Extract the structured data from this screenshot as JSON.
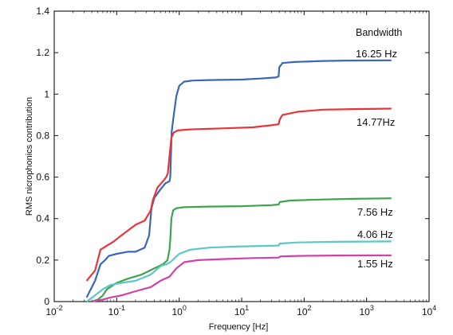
{
  "chart_data": {
    "type": "line",
    "title": "",
    "xlabel": "Frequency [Hz]",
    "ylabel": "RMS nicrophonics contribution",
    "xscale": "log",
    "xlim": [
      0.01,
      10000
    ],
    "ylim": [
      0,
      1.4
    ],
    "x_ticks": [
      0.01,
      0.1,
      1,
      10,
      100,
      1000,
      10000
    ],
    "x_tick_labels": [
      {
        "base": "10",
        "exp": "-2"
      },
      {
        "base": "10",
        "exp": "-1"
      },
      {
        "base": "10",
        "exp": "0"
      },
      {
        "base": "10",
        "exp": "1"
      },
      {
        "base": "10",
        "exp": "2"
      },
      {
        "base": "10",
        "exp": "3"
      },
      {
        "base": "10",
        "exp": "4"
      }
    ],
    "y_ticks": [
      0,
      0.2,
      0.4,
      0.6,
      0.8,
      1,
      1.2,
      1.4
    ],
    "y_tick_labels": [
      "0",
      "0.2",
      "0.4",
      "0.6",
      "0.8",
      "1",
      "1.2",
      "1.4"
    ],
    "grid": false,
    "legend_title": "Bandwidth",
    "series": [
      {
        "name": "16.25 Hz",
        "color": "#3a66b8",
        "points": [
          [
            0.033,
            0.02
          ],
          [
            0.045,
            0.1
          ],
          [
            0.055,
            0.18
          ],
          [
            0.065,
            0.2
          ],
          [
            0.075,
            0.22
          ],
          [
            0.1,
            0.23
          ],
          [
            0.15,
            0.24
          ],
          [
            0.2,
            0.24
          ],
          [
            0.28,
            0.26
          ],
          [
            0.33,
            0.32
          ],
          [
            0.36,
            0.45
          ],
          [
            0.4,
            0.5
          ],
          [
            0.5,
            0.54
          ],
          [
            0.6,
            0.57
          ],
          [
            0.7,
            0.58
          ],
          [
            0.72,
            0.6
          ],
          [
            0.76,
            0.82
          ],
          [
            0.82,
            0.9
          ],
          [
            0.9,
            0.99
          ],
          [
            1.0,
            1.04
          ],
          [
            1.2,
            1.06
          ],
          [
            1.6,
            1.065
          ],
          [
            3,
            1.068
          ],
          [
            10,
            1.07
          ],
          [
            20,
            1.075
          ],
          [
            35,
            1.08
          ],
          [
            39,
            1.085
          ],
          [
            40,
            1.13
          ],
          [
            45,
            1.15
          ],
          [
            70,
            1.155
          ],
          [
            200,
            1.16
          ],
          [
            500,
            1.162
          ],
          [
            2500,
            1.163
          ]
        ]
      },
      {
        "name": "14.77Hz",
        "color": "#e8353a",
        "points": [
          [
            0.033,
            0.1
          ],
          [
            0.045,
            0.15
          ],
          [
            0.055,
            0.25
          ],
          [
            0.07,
            0.27
          ],
          [
            0.09,
            0.29
          ],
          [
            0.12,
            0.32
          ],
          [
            0.2,
            0.37
          ],
          [
            0.28,
            0.39
          ],
          [
            0.35,
            0.44
          ],
          [
            0.38,
            0.49
          ],
          [
            0.45,
            0.55
          ],
          [
            0.55,
            0.58
          ],
          [
            0.62,
            0.6
          ],
          [
            0.66,
            0.62
          ],
          [
            0.7,
            0.7
          ],
          [
            0.75,
            0.79
          ],
          [
            0.82,
            0.815
          ],
          [
            0.95,
            0.825
          ],
          [
            1.5,
            0.83
          ],
          [
            5,
            0.835
          ],
          [
            15,
            0.84
          ],
          [
            30,
            0.85
          ],
          [
            39,
            0.855
          ],
          [
            41,
            0.88
          ],
          [
            45,
            0.9
          ],
          [
            80,
            0.915
          ],
          [
            200,
            0.925
          ],
          [
            600,
            0.928
          ],
          [
            2500,
            0.93
          ]
        ]
      },
      {
        "name": "7.56 Hz",
        "color": "#3fa34d",
        "points": [
          [
            0.04,
            0
          ],
          [
            0.05,
            0.01
          ],
          [
            0.06,
            0.03
          ],
          [
            0.07,
            0.06
          ],
          [
            0.1,
            0.09
          ],
          [
            0.15,
            0.11
          ],
          [
            0.25,
            0.13
          ],
          [
            0.4,
            0.16
          ],
          [
            0.55,
            0.18
          ],
          [
            0.65,
            0.2
          ],
          [
            0.7,
            0.25
          ],
          [
            0.72,
            0.3
          ],
          [
            0.75,
            0.4
          ],
          [
            0.8,
            0.44
          ],
          [
            0.9,
            0.45
          ],
          [
            1.2,
            0.455
          ],
          [
            3,
            0.458
          ],
          [
            10,
            0.46
          ],
          [
            30,
            0.465
          ],
          [
            39,
            0.468
          ],
          [
            41,
            0.48
          ],
          [
            60,
            0.487
          ],
          [
            200,
            0.492
          ],
          [
            600,
            0.495
          ],
          [
            2500,
            0.498
          ]
        ]
      },
      {
        "name": "4.06 Hz",
        "color": "#5ec6c6",
        "points": [
          [
            0.033,
            0
          ],
          [
            0.045,
            0.03
          ],
          [
            0.06,
            0.06
          ],
          [
            0.08,
            0.08
          ],
          [
            0.12,
            0.09
          ],
          [
            0.2,
            0.1
          ],
          [
            0.35,
            0.13
          ],
          [
            0.5,
            0.17
          ],
          [
            0.62,
            0.18
          ],
          [
            0.72,
            0.19
          ],
          [
            0.85,
            0.21
          ],
          [
            1,
            0.23
          ],
          [
            1.5,
            0.25
          ],
          [
            3,
            0.26
          ],
          [
            8,
            0.265
          ],
          [
            20,
            0.268
          ],
          [
            39,
            0.27
          ],
          [
            41,
            0.28
          ],
          [
            80,
            0.285
          ],
          [
            300,
            0.288
          ],
          [
            2500,
            0.29
          ]
        ]
      },
      {
        "name": "1.55 Hz",
        "color": "#d43fa8",
        "points": [
          [
            0.04,
            0
          ],
          [
            0.06,
            0.01
          ],
          [
            0.08,
            0.02
          ],
          [
            0.12,
            0.03
          ],
          [
            0.2,
            0.05
          ],
          [
            0.35,
            0.07
          ],
          [
            0.5,
            0.1
          ],
          [
            0.7,
            0.12
          ],
          [
            0.9,
            0.16
          ],
          [
            1.2,
            0.19
          ],
          [
            2,
            0.2
          ],
          [
            5,
            0.205
          ],
          [
            15,
            0.21
          ],
          [
            39,
            0.212
          ],
          [
            42,
            0.218
          ],
          [
            80,
            0.22
          ],
          [
            300,
            0.222
          ],
          [
            2500,
            0.223
          ]
        ]
      }
    ]
  }
}
